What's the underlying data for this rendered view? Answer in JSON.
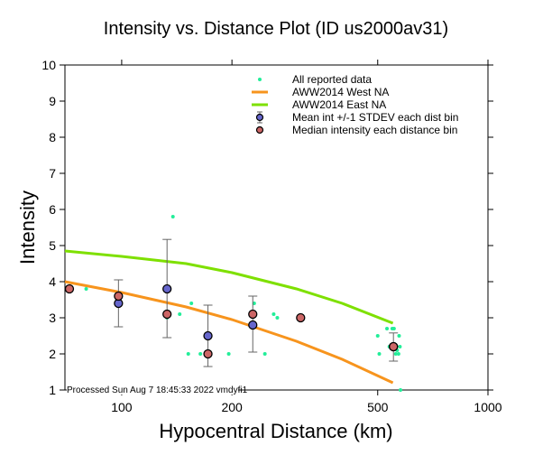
{
  "chart_data": {
    "type": "scatter",
    "title": "Intensity vs. Distance Plot (ID us2000av31)",
    "xlabel": "Hypocentral Distance (km)",
    "ylabel": "Intensity",
    "xscale": "log",
    "xlim": [
      70,
      1000
    ],
    "ylim": [
      1,
      10
    ],
    "xticks": [
      100,
      200,
      500,
      1000
    ],
    "xtick_labels": [
      "100",
      "200",
      "500",
      "1000"
    ],
    "yticks": [
      1,
      2,
      3,
      4,
      5,
      6,
      7,
      8,
      9,
      10
    ],
    "ytick_labels": [
      "1",
      "2",
      "3",
      "4",
      "5",
      "6",
      "7",
      "8",
      "9",
      "10"
    ],
    "grid": false,
    "legend_position": "top-right",
    "footer": "Processed Sun Aug  7 18:45:33 2022 vmdyfi1",
    "colors": {
      "reported": "#22ee99",
      "west": "#f7941d",
      "east": "#7ee000",
      "mean": "#6666cc",
      "median": "#cc6666",
      "errorbar": "#666666"
    },
    "legend": [
      {
        "label": "All reported data",
        "symbol": "dot"
      },
      {
        "label": "AWW2014 West NA",
        "symbol": "line-west"
      },
      {
        "label": "AWW2014 East NA",
        "symbol": "line-east"
      },
      {
        "label": "Mean int +/-1 STDEV each dist bin",
        "symbol": "mean"
      },
      {
        "label": "Median intensity each distance bin",
        "symbol": "median"
      }
    ],
    "series": [
      {
        "name": "AWW2014 West NA",
        "kind": "line",
        "x": [
          70,
          100,
          150,
          200,
          300,
          400,
          550
        ],
        "y": [
          4.0,
          3.7,
          3.3,
          2.95,
          2.35,
          1.85,
          1.2
        ]
      },
      {
        "name": "AWW2014 East NA",
        "kind": "line",
        "x": [
          70,
          100,
          150,
          200,
          300,
          400,
          550
        ],
        "y": [
          4.85,
          4.7,
          4.5,
          4.25,
          3.8,
          3.4,
          2.85
        ]
      },
      {
        "name": "All reported data",
        "kind": "scatter",
        "x": [
          80,
          133,
          138,
          144,
          155,
          152,
          196,
          230,
          246,
          260,
          266,
          164,
          98,
          133,
          500,
          505,
          530,
          538,
          548,
          554,
          560,
          565,
          570,
          575,
          572,
          577
        ],
        "y": [
          3.8,
          3.1,
          5.8,
          3.1,
          3.4,
          2.0,
          2.0,
          3.4,
          2.0,
          3.1,
          3.0,
          2.0,
          3.5,
          3.0,
          2.5,
          2.0,
          2.7,
          2.2,
          2.7,
          2.7,
          2.0,
          2.1,
          2.0,
          2.2,
          2.5,
          1.0
        ]
      },
      {
        "name": "Mean int +/-1 STDEV each dist bin",
        "kind": "errorbar",
        "x": [
          98,
          133,
          172,
          228,
          552
        ],
        "y": [
          3.4,
          3.8,
          2.5,
          2.8,
          2.2
        ],
        "err_low": [
          2.75,
          2.45,
          1.65,
          2.05,
          1.8
        ],
        "err_high": [
          4.05,
          5.17,
          3.35,
          3.6,
          2.58
        ]
      },
      {
        "name": "Median intensity each distance bin",
        "kind": "scatter",
        "x": [
          72,
          98,
          133,
          172,
          228,
          308,
          552
        ],
        "y": [
          3.8,
          3.6,
          3.1,
          2.0,
          3.1,
          3.0,
          2.2
        ]
      }
    ]
  }
}
